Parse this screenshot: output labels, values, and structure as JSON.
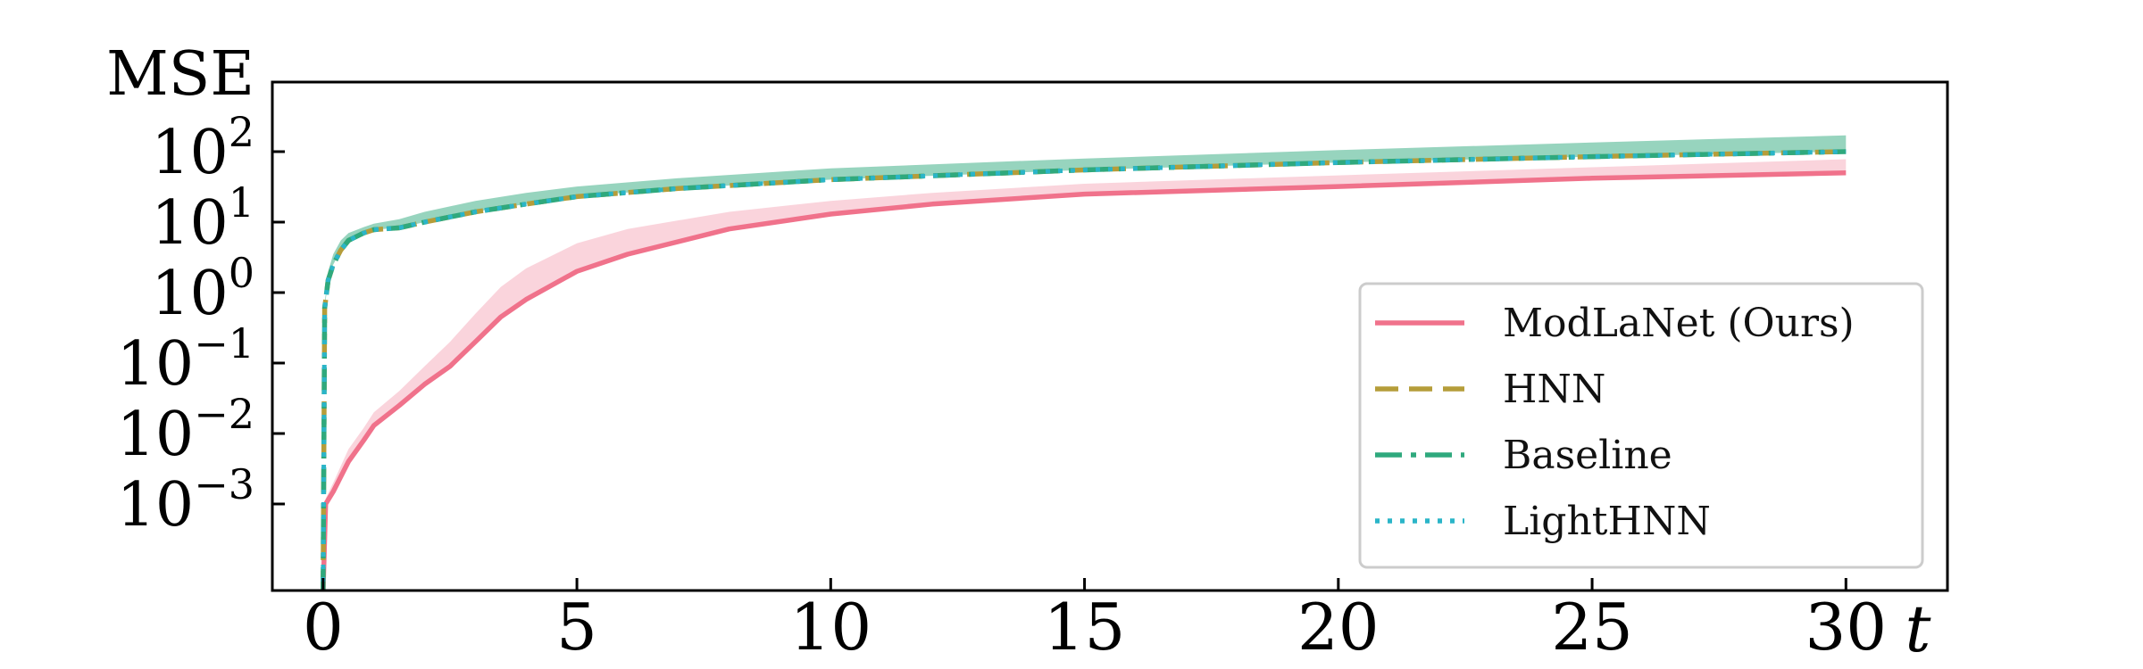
{
  "chart_data": {
    "type": "line",
    "ylabel": "MSE",
    "xlabel": "t",
    "yscale": "log",
    "xlim": [
      -1,
      32
    ],
    "ylim": [
      1e-05,
      800
    ],
    "xticks": [
      0,
      5,
      10,
      15,
      20,
      25,
      30
    ],
    "xtick_labels": [
      "0",
      "5",
      "10",
      "15",
      "20",
      "25",
      "30"
    ],
    "yticks": [
      {
        "base": "10",
        "exp": "2",
        "value": 100
      },
      {
        "base": "10",
        "exp": "1",
        "value": 10
      },
      {
        "base": "10",
        "exp": "0",
        "value": 1
      },
      {
        "base": "10",
        "exp": "−1",
        "value": 0.1
      },
      {
        "base": "10",
        "exp": "−2",
        "value": 0.01
      },
      {
        "base": "10",
        "exp": "−3",
        "value": 0.001
      }
    ],
    "legend_position": "lower-right",
    "grid": false,
    "series": [
      {
        "name": "ModLaNet (Ours)",
        "color": "#f0728b",
        "style": "solid",
        "x": [
          0,
          0.05,
          0.2,
          0.5,
          0.8,
          1,
          1.5,
          2,
          2.5,
          3,
          3.5,
          4,
          5,
          6,
          8,
          10,
          12,
          15,
          20,
          25,
          30
        ],
        "y": [
          1e-05,
          0.001,
          0.0015,
          0.004,
          0.008,
          0.013,
          0.025,
          0.05,
          0.09,
          0.2,
          0.45,
          0.8,
          2,
          3.5,
          8,
          13,
          18,
          25,
          32,
          42,
          50
        ],
        "band_lower": [
          1e-05,
          0.001,
          0.0015,
          0.004,
          0.008,
          0.013,
          0.025,
          0.05,
          0.09,
          0.2,
          0.45,
          0.8,
          2,
          3.5,
          8,
          13,
          18,
          25,
          32,
          42,
          50
        ],
        "band_upper": [
          1e-05,
          0.0012,
          0.002,
          0.006,
          0.012,
          0.02,
          0.04,
          0.09,
          0.2,
          0.5,
          1.2,
          2.2,
          5,
          8,
          14,
          20,
          26,
          35,
          46,
          60,
          78
        ]
      },
      {
        "name": "HNN",
        "color": "#b59d3a",
        "style": "dashed",
        "x": [
          0,
          0.03,
          0.1,
          0.2,
          0.35,
          0.5,
          0.8,
          1,
          1.5,
          2,
          3,
          4,
          5,
          7,
          10,
          15,
          20,
          25,
          30
        ],
        "y": [
          1e-05,
          0.6,
          1.5,
          2.5,
          4,
          5.5,
          7,
          7.8,
          8.3,
          10,
          14,
          18,
          23,
          30,
          40,
          55,
          70,
          85,
          100
        ]
      },
      {
        "name": "Baseline",
        "color": "#2fa97d",
        "style": "dashdot",
        "x": [
          0,
          0.03,
          0.1,
          0.2,
          0.35,
          0.5,
          0.8,
          1,
          1.5,
          2,
          3,
          4,
          5,
          7,
          10,
          15,
          20,
          25,
          30
        ],
        "y": [
          1e-05,
          0.6,
          1.5,
          2.5,
          4,
          5.5,
          7,
          7.8,
          8.3,
          10,
          14,
          18,
          23,
          30,
          40,
          55,
          70,
          85,
          100
        ],
        "band_lower": [
          1e-05,
          0.6,
          1.5,
          2.5,
          4,
          5.5,
          7,
          7.8,
          8.3,
          10,
          14,
          18,
          23,
          30,
          40,
          55,
          70,
          85,
          100
        ],
        "band_upper": [
          1e-05,
          0.7,
          2,
          3.5,
          5.5,
          7,
          8.5,
          9.5,
          11,
          14,
          20,
          26,
          32,
          42,
          58,
          80,
          105,
          135,
          170
        ]
      },
      {
        "name": "LightHNN",
        "color": "#2bb5c8",
        "style": "dotted",
        "x": [
          0,
          0.03,
          0.1,
          0.2,
          0.35,
          0.5,
          0.8,
          1,
          1.5,
          2,
          3,
          4,
          5,
          7,
          10,
          15,
          20,
          25,
          30
        ],
        "y": [
          1e-05,
          0.6,
          1.5,
          2.5,
          4,
          5.5,
          7,
          7.8,
          8.3,
          10,
          14,
          18,
          23,
          30,
          40,
          55,
          70,
          85,
          100
        ]
      }
    ]
  }
}
